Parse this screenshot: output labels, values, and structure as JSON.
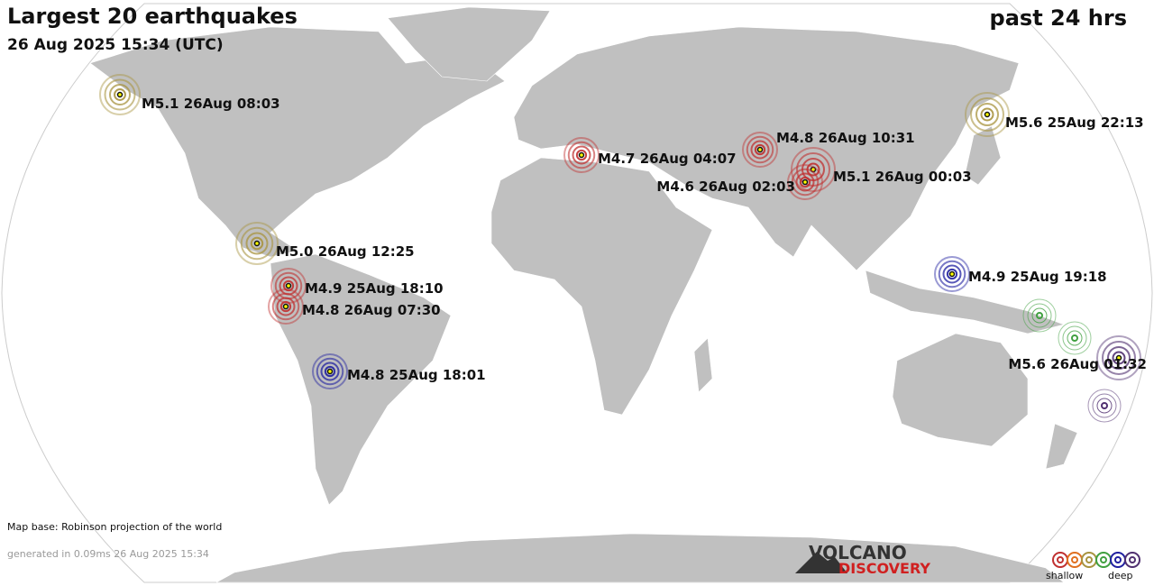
{
  "header": {
    "title": "Largest 20 earthquakes",
    "subtitle": "26 Aug 2025 15:34 (UTC)",
    "period": "past 24 hrs"
  },
  "quakes": [
    {
      "label": "M5.1 26Aug 08:03",
      "color": "#a89440"
    },
    {
      "label": "M5.6 25Aug 22:13",
      "color": "#a89440"
    },
    {
      "label": "M4.7 26Aug 04:07",
      "color": "#c03030"
    },
    {
      "label": "M4.8 26Aug 10:31",
      "color": "#c03030"
    },
    {
      "label": "M5.1 26Aug 00:03",
      "color": "#c03030"
    },
    {
      "label": "M4.6 26Aug 02:03",
      "color": "#c03030"
    },
    {
      "label": "M5.0 26Aug 12:25",
      "color": "#a89440"
    },
    {
      "label": "M4.9 25Aug 19:18",
      "color": "#2020a0"
    },
    {
      "label": "M4.9 25Aug 18:10",
      "color": "#c03030"
    },
    {
      "label": "M4.8 26Aug 07:30",
      "color": "#c03030"
    },
    {
      "label": "M4.8 25Aug 18:01",
      "color": "#2020a0"
    },
    {
      "label": "M5.6 26Aug 01:32",
      "color": "#503070"
    }
  ],
  "footer": {
    "map_base": "Map base: Robinson projection of the world",
    "generated": "generated in 0.09ms 26 Aug 2025 15:34"
  },
  "logo": {
    "line1": "VOLCANO",
    "line2": "DISCOVERY"
  },
  "legend": {
    "shallow": "shallow",
    "deep": "deep"
  }
}
